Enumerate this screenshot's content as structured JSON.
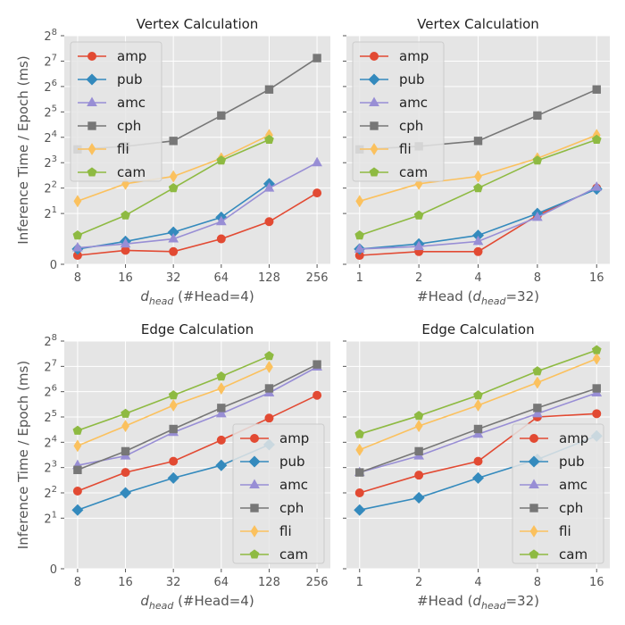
{
  "figure": {
    "ylabel": "Inference Time / Epoch (ms)"
  },
  "colors": {
    "amp": "#E24A33",
    "pub": "#348ABD",
    "amc": "#988ED5",
    "cph": "#777777",
    "fli": "#FBC15E",
    "cam": "#8EBA42",
    "panel_bg": "#E5E5E5",
    "grid": "#FFFFFF"
  },
  "chart_data": [
    {
      "type": "line",
      "title": "Vertex Calculation",
      "xlabel": "d_head (#Head=4)",
      "xlabel_parts": {
        "d": "d",
        "sub": "head",
        "rest": " (#Head=4)"
      },
      "ylabel": "Inference Time / Epoch (ms)",
      "yscale": "symlog-base2",
      "categories": [
        "8",
        "16",
        "32",
        "64",
        "128",
        "256"
      ],
      "y_ticks": [
        "0",
        "2^1",
        "2^2",
        "2^3",
        "2^4",
        "2^5",
        "2^6",
        "2^7",
        "2^8"
      ],
      "ylim": [
        0,
        256
      ],
      "legend_position": "upper-left",
      "series": [
        {
          "name": "amp",
          "marker": "circle",
          "values": [
            0.35,
            0.55,
            0.5,
            1.0,
            1.6,
            3.5
          ]
        },
        {
          "name": "pub",
          "marker": "diamond",
          "values": [
            0.6,
            0.9,
            1.2,
            1.8,
            4.5,
            null
          ]
        },
        {
          "name": "amc",
          "marker": "triangle",
          "values": [
            0.65,
            0.8,
            1.0,
            1.6,
            4.0,
            8.0
          ]
        },
        {
          "name": "cph",
          "marker": "square",
          "values": [
            11.5,
            12.5,
            14.5,
            29,
            59,
            139
          ]
        },
        {
          "name": "fli",
          "marker": "thin_diamond",
          "values": [
            2.8,
            4.5,
            5.5,
            9.0,
            17,
            null
          ]
        },
        {
          "name": "cam",
          "marker": "pentagon",
          "values": [
            1.1,
            1.9,
            4.0,
            8.5,
            15,
            null
          ]
        }
      ]
    },
    {
      "type": "line",
      "title": "Vertex Calculation",
      "xlabel": "#Head (d_head=32)",
      "xlabel_parts": {
        "pre": "#Head (",
        "d": "d",
        "sub": "head",
        "rest": "=32)"
      },
      "ylabel": "Inference Time / Epoch (ms)",
      "yscale": "symlog-base2",
      "categories": [
        "1",
        "2",
        "4",
        "8",
        "16"
      ],
      "y_ticks": [
        "0",
        "2^1",
        "2^2",
        "2^3",
        "2^4",
        "2^5",
        "2^6",
        "2^7",
        "2^8"
      ],
      "ylim": [
        0,
        256
      ],
      "legend_position": "upper-left",
      "series": [
        {
          "name": "amp",
          "marker": "circle",
          "values": [
            0.35,
            0.5,
            0.5,
            1.9,
            4.0
          ]
        },
        {
          "name": "pub",
          "marker": "diamond",
          "values": [
            0.6,
            0.8,
            1.1,
            2.0,
            3.9
          ]
        },
        {
          "name": "amc",
          "marker": "triangle",
          "values": [
            0.6,
            0.7,
            0.9,
            1.8,
            4.1
          ]
        },
        {
          "name": "cph",
          "marker": "square",
          "values": [
            11.5,
            12.5,
            14.5,
            29,
            59
          ]
        },
        {
          "name": "fli",
          "marker": "thin_diamond",
          "values": [
            2.8,
            4.5,
            5.5,
            9.0,
            17
          ]
        },
        {
          "name": "cam",
          "marker": "pentagon",
          "values": [
            1.1,
            1.9,
            4.0,
            8.5,
            15
          ]
        }
      ]
    },
    {
      "type": "line",
      "title": "Edge Calculation",
      "xlabel": "d_head (#Head=4)",
      "xlabel_parts": {
        "d": "d",
        "sub": "head",
        "rest": " (#Head=4)"
      },
      "ylabel": "Inference Time / Epoch (ms)",
      "yscale": "symlog-base2",
      "categories": [
        "8",
        "16",
        "32",
        "64",
        "128",
        "256"
      ],
      "y_ticks": [
        "0",
        "2^1",
        "2^2",
        "2^3",
        "2^4",
        "2^5",
        "2^6",
        "2^7",
        "2^8"
      ],
      "ylim": [
        0,
        256
      ],
      "legend_position": "lower-right",
      "series": [
        {
          "name": "amp",
          "marker": "circle",
          "values": [
            4.2,
            7.0,
            9.5,
            17,
            31,
            58
          ]
        },
        {
          "name": "pub",
          "marker": "diamond",
          "values": [
            2.5,
            4.0,
            6.0,
            8.5,
            15,
            null
          ]
        },
        {
          "name": "amc",
          "marker": "triangle",
          "values": [
            8.5,
            11,
            21,
            35,
            62,
            126
          ]
        },
        {
          "name": "cph",
          "marker": "square",
          "values": [
            7.5,
            12.5,
            23,
            41,
            70,
            135
          ]
        },
        {
          "name": "fli",
          "marker": "thin_diamond",
          "values": [
            14.5,
            25,
            44,
            70,
            126,
            null
          ]
        },
        {
          "name": "cam",
          "marker": "pentagon",
          "values": [
            22,
            35,
            58,
            97,
            170,
            null
          ]
        }
      ]
    },
    {
      "type": "line",
      "title": "Edge Calculation",
      "xlabel": "#Head (d_head=32)",
      "xlabel_parts": {
        "pre": "#Head (",
        "d": "d",
        "sub": "head",
        "rest": "=32)"
      },
      "ylabel": "Inference Time / Epoch (ms)",
      "yscale": "symlog-base2",
      "categories": [
        "1",
        "2",
        "4",
        "8",
        "16"
      ],
      "y_ticks": [
        "0",
        "2^1",
        "2^2",
        "2^3",
        "2^4",
        "2^5",
        "2^6",
        "2^7",
        "2^8"
      ],
      "ylim": [
        0,
        256
      ],
      "legend_position": "lower-right",
      "series": [
        {
          "name": "amp",
          "marker": "circle",
          "values": [
            4.0,
            6.5,
            9.5,
            32,
            35
          ]
        },
        {
          "name": "pub",
          "marker": "diamond",
          "values": [
            2.5,
            3.5,
            6.0,
            10,
            19
          ]
        },
        {
          "name": "amc",
          "marker": "triangle",
          "values": [
            7.0,
            11,
            20,
            35,
            62
          ]
        },
        {
          "name": "cph",
          "marker": "square",
          "values": [
            7.0,
            12.5,
            23,
            41,
            70
          ]
        },
        {
          "name": "fli",
          "marker": "thin_diamond",
          "values": [
            13,
            25,
            44,
            82,
            158
          ]
        },
        {
          "name": "cam",
          "marker": "pentagon",
          "values": [
            20,
            33,
            58,
            112,
            200
          ]
        }
      ]
    }
  ]
}
